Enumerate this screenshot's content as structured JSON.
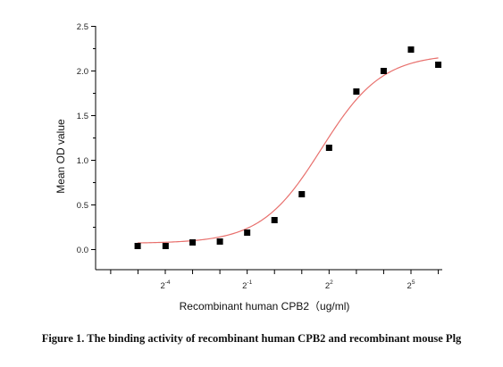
{
  "chart_data": {
    "type": "scatter",
    "title": "",
    "xlabel": "Recombinant human  CPB2（ug/ml)",
    "ylabel": "Mean OD value",
    "x_scale": "log2",
    "xlim": [
      0.015625,
      64
    ],
    "ylim": [
      -0.2,
      2.5
    ],
    "y_ticks": [
      0.0,
      0.5,
      1.0,
      1.5,
      2.0,
      2.5
    ],
    "y_tick_labels": [
      "0.0",
      "0.5",
      "1.0",
      "1.5",
      "2.0",
      "2.5"
    ],
    "x_ticks": [
      0.0625,
      0.5,
      4,
      32
    ],
    "x_tick_labels": [
      {
        "base": "2",
        "exp": "-4"
      },
      {
        "base": "2",
        "exp": "-1"
      },
      {
        "base": "2",
        "exp": "2"
      },
      {
        "base": "2",
        "exp": "5"
      }
    ],
    "series": [
      {
        "marker": "square",
        "color": "#000000",
        "x": [
          0.031,
          0.063,
          0.125,
          0.25,
          0.5,
          1,
          2,
          4,
          8,
          16,
          32,
          64
        ],
        "y": [
          0.04,
          0.04,
          0.08,
          0.09,
          0.19,
          0.33,
          0.62,
          1.14,
          1.77,
          2.0,
          2.24,
          2.07
        ]
      }
    ],
    "fit_curve": {
      "type": "4PL",
      "color": "#e8706d",
      "bottom": 0.07,
      "top": 2.19,
      "ec50": 3.3,
      "hill": 1.3
    },
    "grid": false,
    "legend": "none"
  },
  "caption": "Figure 1. The binding activity of recombinant human CPB2 and recombinant mouse Plg"
}
